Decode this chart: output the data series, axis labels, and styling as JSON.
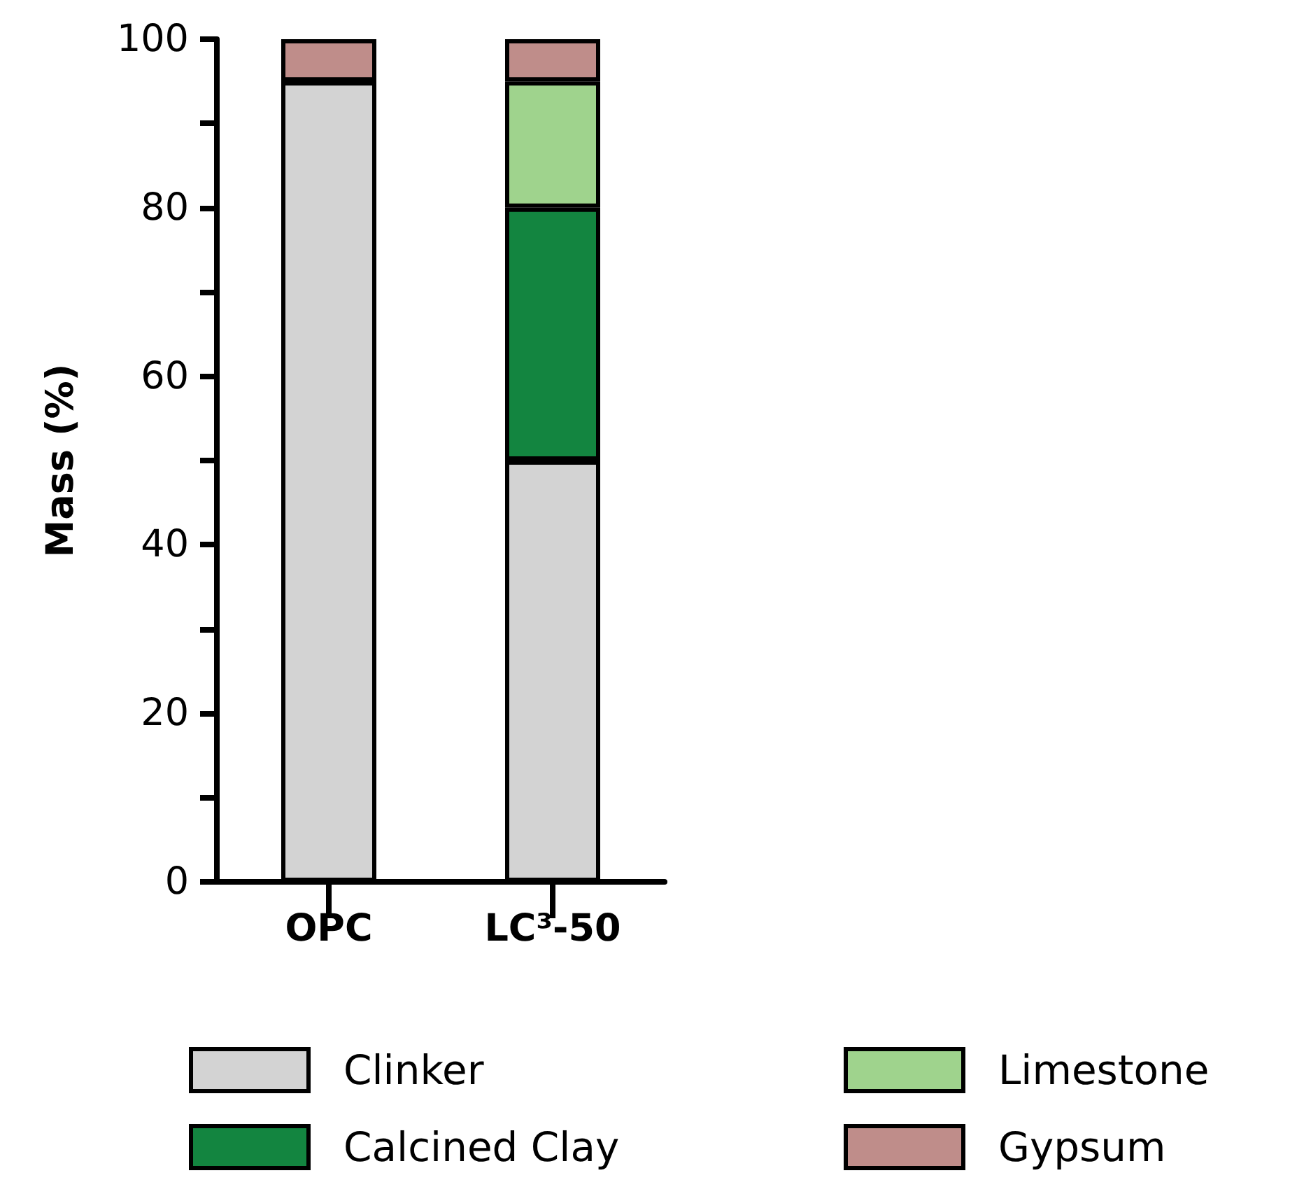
{
  "chart_data": {
    "type": "bar",
    "ylabel": "Mass (%)",
    "categories": [
      "OPC",
      "LC³-50"
    ],
    "stacked": true,
    "ylim": [
      0,
      100
    ],
    "yticks": [
      0,
      {
        "value": 10,
        "label": null
      },
      20,
      {
        "value": 30,
        "label": null
      },
      40,
      {
        "value": 50,
        "label": null
      },
      60,
      {
        "value": 70,
        "label": null
      },
      80,
      {
        "value": 90,
        "label": null
      },
      100
    ],
    "grid": false,
    "legend": "bottom",
    "series": [
      {
        "name": "Clinker",
        "color": "#d3d3d3",
        "values": [
          95,
          50
        ]
      },
      {
        "name": "Calcined Clay",
        "color": "#138540",
        "values": [
          0,
          30
        ]
      },
      {
        "name": "Limestone",
        "color": "#9fd38d",
        "values": [
          0,
          15
        ]
      },
      {
        "name": "Gypsum",
        "color": "#bf8d8a",
        "values": [
          5,
          5
        ]
      }
    ]
  }
}
